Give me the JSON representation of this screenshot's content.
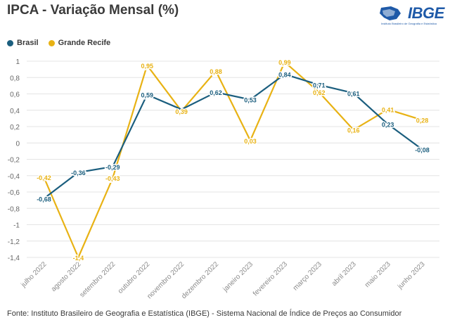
{
  "header": {
    "title": "IPCA - Variação Mensal (%)",
    "logo_text": "IBGE",
    "logo_subtext": "Instituto Brasileiro de Geografia e Estatística"
  },
  "footer": {
    "source": "Fonte: Instituto Brasileiro de Geografia e Estatística (IBGE) - Sistema Nacional de Índice de Preços ao Consumidor"
  },
  "colors": {
    "brasil": "#1b5e7e",
    "recife": "#e8b214",
    "grid": "#e4e4e4",
    "axis_text": "#666666"
  },
  "chart_data": {
    "type": "line",
    "categories": [
      "julho 2022",
      "agosto 2022",
      "setembro 2022",
      "outubro 2022",
      "novembro 2022",
      "dezembro 2022",
      "janeiro 2023",
      "fevereiro 2023",
      "março 2023",
      "abril 2023",
      "maio 2023",
      "junho 2023"
    ],
    "series": [
      {
        "name": "Brasil",
        "values": [
          -0.68,
          -0.36,
          -0.29,
          0.59,
          0.41,
          0.62,
          0.53,
          0.84,
          0.71,
          0.61,
          0.23,
          -0.08
        ],
        "labels": [
          "-0,68",
          "-0,36",
          "-0,29",
          "0,59",
          "",
          "0,62",
          "0,53",
          "0,84",
          "0,71",
          "0,61",
          "0,23",
          "-0,08"
        ]
      },
      {
        "name": "Grande Recife",
        "values": [
          -0.42,
          -1.4,
          -0.43,
          0.95,
          0.39,
          0.88,
          0.03,
          0.99,
          0.62,
          0.16,
          0.41,
          0.28
        ],
        "labels": [
          "-0,42",
          "-1,4",
          "-0,43",
          "0,95",
          "0,39",
          "0,88",
          "0,03",
          "0,99",
          "0,62",
          "0,16",
          "0,41",
          "0,28"
        ]
      }
    ],
    "yticks": [
      "1",
      "0,8",
      "0,6",
      "0,4",
      "0,2",
      "0",
      "-0,2",
      "-0,4",
      "-0,6",
      "-0,8",
      "-1",
      "-1,2",
      "-1,4"
    ],
    "ytick_values": [
      1,
      0.8,
      0.6,
      0.4,
      0.2,
      0,
      -0.2,
      -0.4,
      -0.6,
      -0.8,
      -1,
      -1.2,
      -1.4
    ],
    "ylim": [
      -1.4,
      1
    ],
    "grid": true,
    "legend": "top-left"
  }
}
